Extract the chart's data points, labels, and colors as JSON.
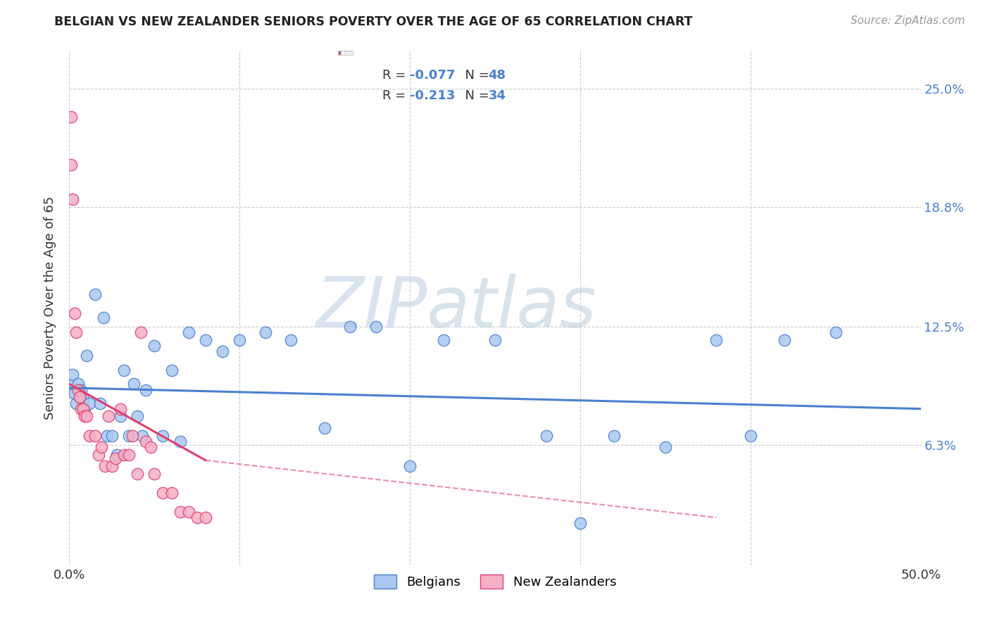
{
  "title": "BELGIAN VS NEW ZEALANDER SENIORS POVERTY OVER THE AGE OF 65 CORRELATION CHART",
  "source": "Source: ZipAtlas.com",
  "ylabel": "Seniors Poverty Over the Age of 65",
  "ytick_labels": [
    "25.0%",
    "18.8%",
    "12.5%",
    "6.3%"
  ],
  "ytick_vals": [
    0.25,
    0.188,
    0.125,
    0.063
  ],
  "xlim": [
    0.0,
    0.5
  ],
  "ylim": [
    0.0,
    0.27
  ],
  "belgian_R": -0.077,
  "belgian_N": 48,
  "nz_R": -0.213,
  "nz_N": 34,
  "belgian_color": "#aac8f0",
  "nz_color": "#f5b0c5",
  "belgian_line_color": "#4a80d0",
  "nz_line_color": "#e04070",
  "belgian_scatter_x": [
    0.001,
    0.002,
    0.003,
    0.004,
    0.005,
    0.006,
    0.007,
    0.008,
    0.009,
    0.01,
    0.012,
    0.015,
    0.018,
    0.02,
    0.022,
    0.025,
    0.028,
    0.03,
    0.032,
    0.035,
    0.038,
    0.04,
    0.043,
    0.045,
    0.05,
    0.055,
    0.06,
    0.065,
    0.07,
    0.08,
    0.09,
    0.1,
    0.115,
    0.13,
    0.15,
    0.165,
    0.18,
    0.2,
    0.22,
    0.25,
    0.28,
    0.3,
    0.32,
    0.35,
    0.38,
    0.4,
    0.42,
    0.45
  ],
  "belgian_scatter_y": [
    0.095,
    0.1,
    0.09,
    0.085,
    0.095,
    0.088,
    0.092,
    0.087,
    0.082,
    0.11,
    0.085,
    0.142,
    0.085,
    0.13,
    0.068,
    0.068,
    0.058,
    0.078,
    0.102,
    0.068,
    0.095,
    0.078,
    0.068,
    0.092,
    0.115,
    0.068,
    0.102,
    0.065,
    0.122,
    0.118,
    0.112,
    0.118,
    0.122,
    0.118,
    0.072,
    0.125,
    0.125,
    0.052,
    0.118,
    0.118,
    0.068,
    0.022,
    0.068,
    0.062,
    0.118,
    0.068,
    0.118,
    0.122
  ],
  "nz_scatter_x": [
    0.001,
    0.001,
    0.002,
    0.003,
    0.004,
    0.005,
    0.006,
    0.007,
    0.008,
    0.009,
    0.01,
    0.012,
    0.015,
    0.017,
    0.019,
    0.021,
    0.023,
    0.025,
    0.027,
    0.03,
    0.032,
    0.035,
    0.037,
    0.04,
    0.042,
    0.045,
    0.048,
    0.05,
    0.055,
    0.06,
    0.065,
    0.07,
    0.075,
    0.08
  ],
  "nz_scatter_y": [
    0.235,
    0.21,
    0.192,
    0.132,
    0.122,
    0.092,
    0.088,
    0.082,
    0.082,
    0.078,
    0.078,
    0.068,
    0.068,
    0.058,
    0.062,
    0.052,
    0.078,
    0.052,
    0.056,
    0.082,
    0.058,
    0.058,
    0.068,
    0.048,
    0.122,
    0.065,
    0.062,
    0.048,
    0.038,
    0.038,
    0.028,
    0.028,
    0.025,
    0.025
  ],
  "watermark_zip": "ZIP",
  "watermark_atlas": "atlas",
  "background_color": "#ffffff",
  "grid_color": "#cccccc"
}
